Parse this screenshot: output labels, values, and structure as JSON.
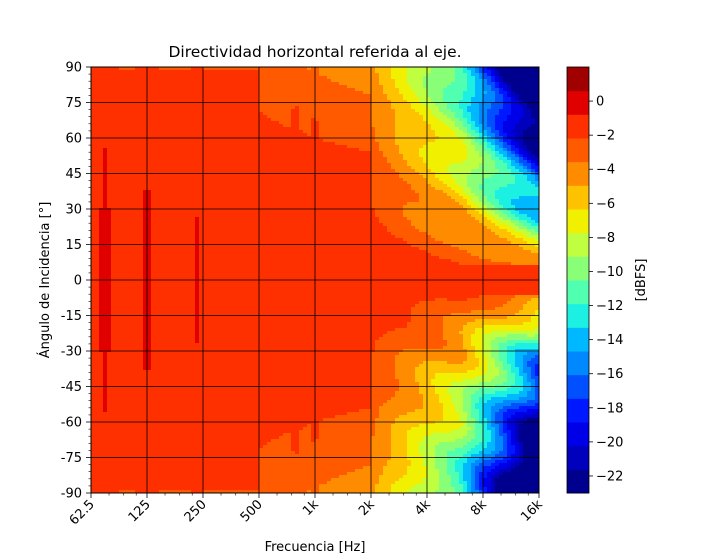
{
  "chart_data": {
    "type": "heatmap",
    "title": "Directividad horizontal referida al eje.",
    "xlabel": "Frecuencia [Hz]",
    "ylabel": "Ángulo de Incidencia [°]",
    "x_scale": "log2",
    "x_ticks": [
      {
        "value": 62.5,
        "label": "62.5"
      },
      {
        "value": 125,
        "label": "125"
      },
      {
        "value": 250,
        "label": "250"
      },
      {
        "value": 500,
        "label": "500"
      },
      {
        "value": 1000,
        "label": "1k"
      },
      {
        "value": 2000,
        "label": "2k"
      },
      {
        "value": 4000,
        "label": "4k"
      },
      {
        "value": 8000,
        "label": "8k"
      },
      {
        "value": 16000,
        "label": "16k"
      }
    ],
    "xlim": [
      62.5,
      16000
    ],
    "y_ticks": [
      90,
      75,
      60,
      45,
      30,
      15,
      0,
      -15,
      -30,
      -45,
      -60,
      -75,
      -90
    ],
    "y_tick_labels": [
      "90",
      "75",
      "60",
      "45",
      "30",
      "15",
      "0",
      "-15",
      "-30",
      "-45",
      "-60",
      "-75",
      "-90"
    ],
    "ylim": [
      -90,
      90
    ],
    "grid": true,
    "colorbar": {
      "label": "[dBFS]",
      "levels": [
        -23,
        -22,
        -21,
        -20,
        -19,
        -18,
        -17,
        -16,
        -15,
        -14,
        -13,
        -12,
        -11,
        -10,
        -9,
        -8,
        -7,
        -6,
        -5,
        -4,
        -3,
        -2,
        -1,
        0,
        1,
        2
      ],
      "colors": [
        "#00008f",
        "#0000bd",
        "#0000e8",
        "#0018ff",
        "#0050ff",
        "#0088ff",
        "#00b8ff",
        "#1cf0e2",
        "#50ffaf",
        "#88ff77",
        "#bfff3f",
        "#f0f000",
        "#ffc200",
        "#ff8c00",
        "#ff5a00",
        "#ff3000",
        "#e00000",
        "#a00000"
      ],
      "ticks": [
        0,
        -2,
        -4,
        -6,
        -8,
        -10,
        -12,
        -14,
        -16,
        -18,
        -20,
        -22
      ],
      "tick_labels": [
        "0",
        "−2",
        "−4",
        "−6",
        "−8",
        "−10",
        "−12",
        "−14",
        "−16",
        "−18",
        "−20",
        "−22"
      ]
    }
  }
}
